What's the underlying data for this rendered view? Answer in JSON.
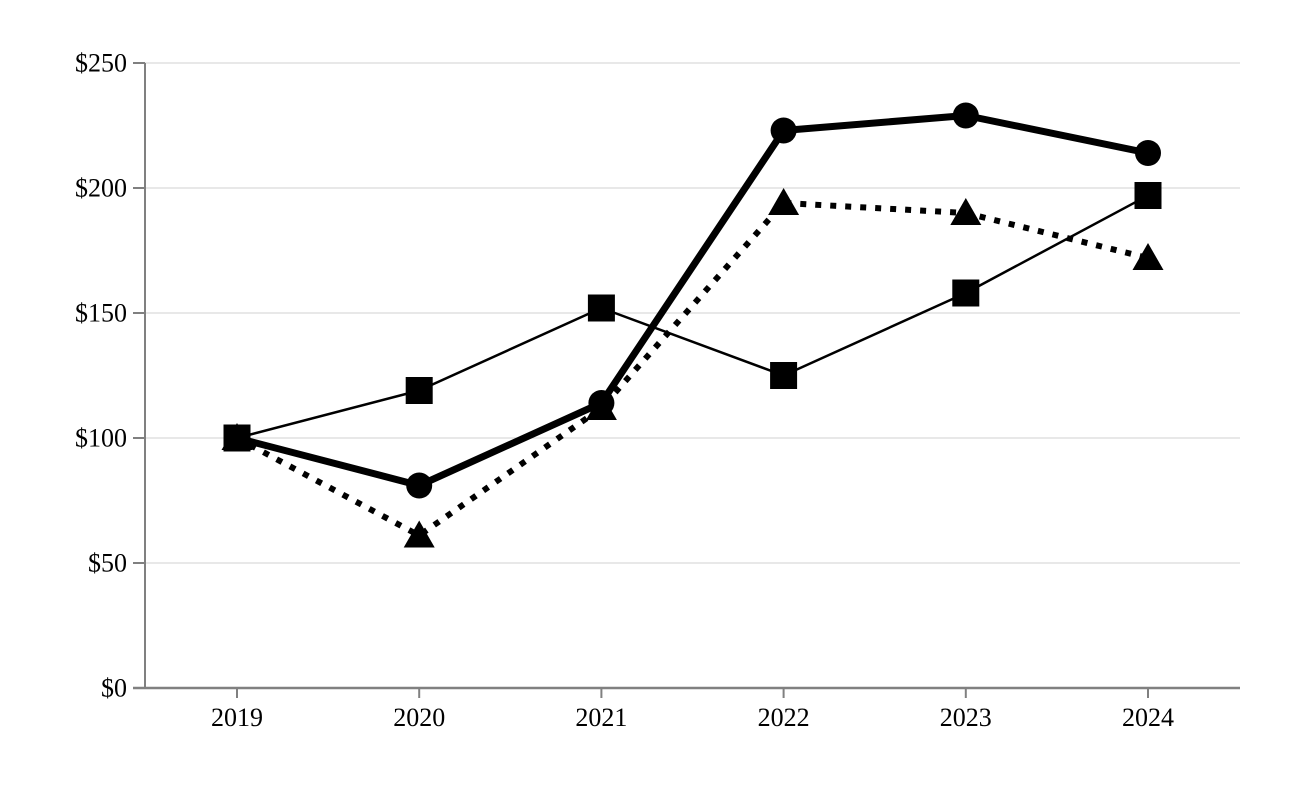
{
  "chart_data": {
    "type": "line",
    "title": "",
    "xlabel": "",
    "ylabel": "",
    "categories": [
      "2019",
      "2020",
      "2021",
      "2022",
      "2023",
      "2024"
    ],
    "series": [
      {
        "name": "triangle-dotted-series",
        "marker": "triangle",
        "line_style": "dotted",
        "values": [
          100,
          61,
          112,
          194,
          190,
          172
        ]
      },
      {
        "name": "circle-thick-series",
        "marker": "circle",
        "line_style": "thick-solid",
        "values": [
          100,
          81,
          114,
          223,
          229,
          214
        ]
      },
      {
        "name": "square-thin-series",
        "marker": "square",
        "line_style": "thin-solid",
        "values": [
          100,
          119,
          152,
          125,
          158,
          197
        ]
      }
    ],
    "ylim": [
      0,
      250
    ],
    "y_ticks": [
      {
        "value": 0,
        "label": "$0"
      },
      {
        "value": 50,
        "label": "$50"
      },
      {
        "value": 100,
        "label": "$100"
      },
      {
        "value": 150,
        "label": "$150"
      },
      {
        "value": 200,
        "label": "$200"
      },
      {
        "value": 250,
        "label": "$250"
      }
    ],
    "grid": "horizontal",
    "legend": "none",
    "colors": {
      "series": "#000000",
      "gridline": "#d9d9d9",
      "axis": "#808080",
      "tick": "#808080",
      "label": "#000000",
      "background": "#ffffff"
    }
  }
}
